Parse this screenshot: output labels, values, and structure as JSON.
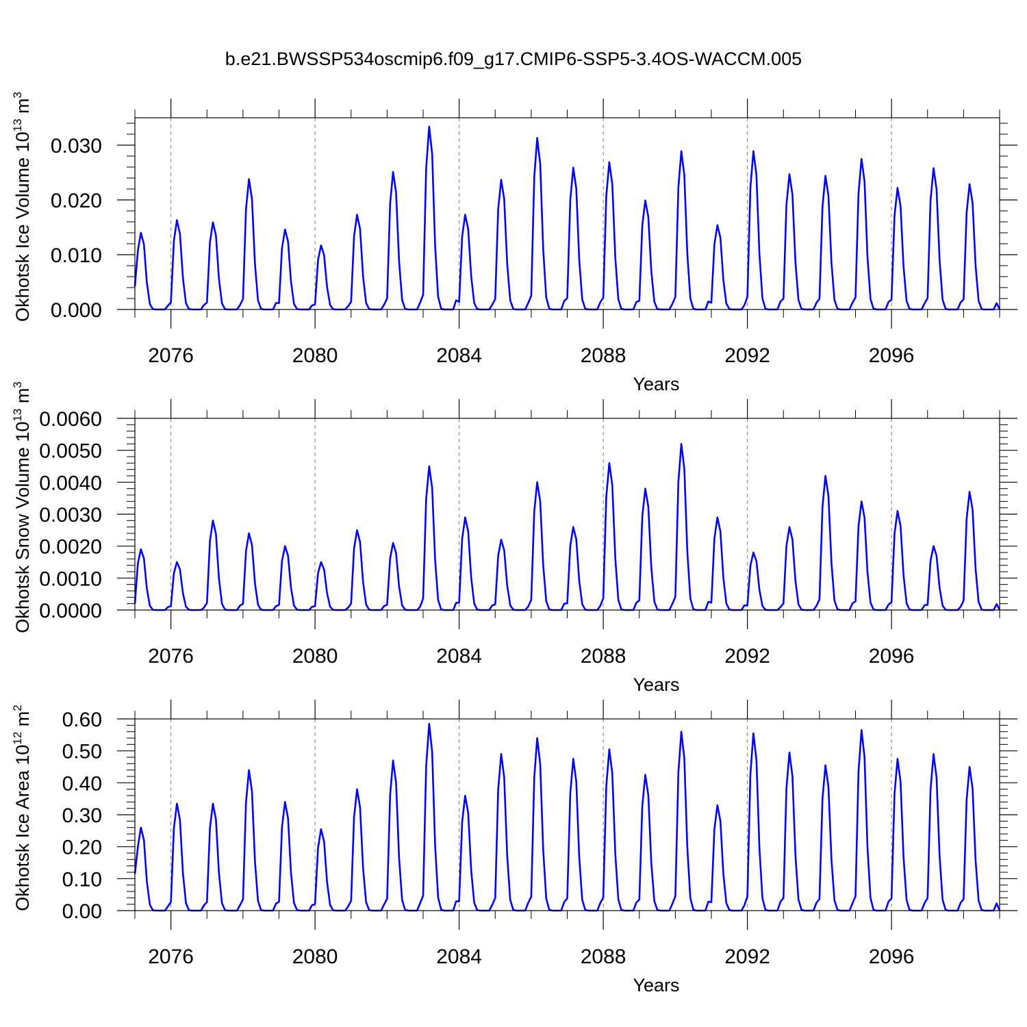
{
  "figure": {
    "title": "b.e21.BWSSP534oscmip6.f09_g17.CMIP6-SSP5-3.4OS-WACCM.005"
  },
  "colors": {
    "series": "#0000ff",
    "axis": "#000000",
    "grid": "#777777"
  },
  "chart_data": [
    {
      "type": "line",
      "ylabel_main": "Okhotsk Ice Volume 10",
      "ylabel_exp": "13",
      "ylabel_unit": "m",
      "ylabel_unit_exp": "3",
      "xlabel": "Years",
      "xlim": [
        2075.0,
        2099.0
      ],
      "ylim": [
        0.0,
        0.035
      ],
      "yticks": [
        0.0,
        0.01,
        0.02,
        0.03
      ],
      "ytick_labels": [
        "0.000",
        "0.010",
        "0.020",
        "0.030"
      ],
      "xticks": [
        2076,
        2080,
        2084,
        2088,
        2092,
        2096
      ],
      "xtick_labels": [
        "2076",
        "2080",
        "2084",
        "2088",
        "2092",
        "2096"
      ],
      "gridlines_x": [
        2076,
        2080,
        2084,
        2088,
        2092,
        2096
      ],
      "series_name": "Ice Volume",
      "peak_years": [
        2075.2,
        2076.2,
        2077.2,
        2078.2,
        2079.2,
        2080.2,
        2081.2,
        2082.2,
        2083.2,
        2084.2,
        2085.2,
        2086.2,
        2087.2,
        2088.2,
        2089.2,
        2090.2,
        2091.2,
        2092.2,
        2093.2,
        2094.2,
        2095.2,
        2096.2,
        2097.2,
        2098.2
      ],
      "peaks": [
        0.014,
        0.0163,
        0.0159,
        0.0238,
        0.0146,
        0.0117,
        0.0173,
        0.0251,
        0.0334,
        0.0173,
        0.0237,
        0.0313,
        0.0259,
        0.0269,
        0.0199,
        0.0289,
        0.0154,
        0.0289,
        0.0247,
        0.0244,
        0.0275,
        0.0222,
        0.0258,
        0.0229
      ],
      "start_value": 0.0042
    },
    {
      "type": "line",
      "ylabel_main": "Okhotsk Snow Volume 10",
      "ylabel_exp": "13",
      "ylabel_unit": "m",
      "ylabel_unit_exp": "3",
      "xlabel": "Years",
      "xlim": [
        2075.0,
        2099.0
      ],
      "ylim": [
        0.0,
        0.006
      ],
      "yticks": [
        0.0,
        0.001,
        0.002,
        0.003,
        0.004,
        0.005,
        0.006
      ],
      "ytick_labels": [
        "0.0000",
        "0.0010",
        "0.0020",
        "0.0030",
        "0.0040",
        "0.0050",
        "0.0060"
      ],
      "xticks": [
        2076,
        2080,
        2084,
        2088,
        2092,
        2096
      ],
      "xtick_labels": [
        "2076",
        "2080",
        "2084",
        "2088",
        "2092",
        "2096"
      ],
      "gridlines_x": [
        2076,
        2080,
        2084,
        2088,
        2092,
        2096
      ],
      "series_name": "Snow Volume",
      "peak_years": [
        2075.2,
        2076.2,
        2077.2,
        2078.2,
        2079.2,
        2080.2,
        2081.2,
        2082.2,
        2083.2,
        2084.2,
        2085.2,
        2086.2,
        2087.2,
        2088.2,
        2089.2,
        2090.2,
        2091.2,
        2092.2,
        2093.2,
        2094.2,
        2095.2,
        2096.2,
        2097.2,
        2098.2
      ],
      "peaks": [
        0.0019,
        0.0015,
        0.0028,
        0.0024,
        0.002,
        0.0015,
        0.0025,
        0.0021,
        0.0045,
        0.0029,
        0.0022,
        0.004,
        0.0026,
        0.0046,
        0.0038,
        0.0052,
        0.0029,
        0.0018,
        0.0026,
        0.0042,
        0.0034,
        0.0031,
        0.002,
        0.0037
      ],
      "start_value": 0.0002
    },
    {
      "type": "line",
      "ylabel_main": "Okhotsk Ice Area 10",
      "ylabel_exp": "12",
      "ylabel_unit": "m",
      "ylabel_unit_exp": "2",
      "xlabel": "Years",
      "xlim": [
        2075.0,
        2099.0
      ],
      "ylim": [
        0.0,
        0.6
      ],
      "yticks": [
        0.0,
        0.1,
        0.2,
        0.3,
        0.4,
        0.5,
        0.6
      ],
      "ytick_labels": [
        "0.00",
        "0.10",
        "0.20",
        "0.30",
        "0.40",
        "0.50",
        "0.60"
      ],
      "xticks": [
        2076,
        2080,
        2084,
        2088,
        2092,
        2096
      ],
      "xtick_labels": [
        "2076",
        "2080",
        "2084",
        "2088",
        "2092",
        "2096"
      ],
      "gridlines_x": [
        2076,
        2080,
        2084,
        2088,
        2092,
        2096
      ],
      "series_name": "Ice Area",
      "peak_years": [
        2075.2,
        2076.2,
        2077.2,
        2078.2,
        2079.2,
        2080.2,
        2081.2,
        2082.2,
        2083.2,
        2084.2,
        2085.2,
        2086.2,
        2087.2,
        2088.2,
        2089.2,
        2090.2,
        2091.2,
        2092.2,
        2093.2,
        2094.2,
        2095.2,
        2096.2,
        2097.2,
        2098.2
      ],
      "peaks": [
        0.26,
        0.335,
        0.335,
        0.44,
        0.34,
        0.255,
        0.38,
        0.47,
        0.585,
        0.36,
        0.49,
        0.54,
        0.475,
        0.505,
        0.425,
        0.56,
        0.33,
        0.555,
        0.495,
        0.455,
        0.565,
        0.475,
        0.49,
        0.45
      ],
      "start_value": 0.115
    }
  ]
}
